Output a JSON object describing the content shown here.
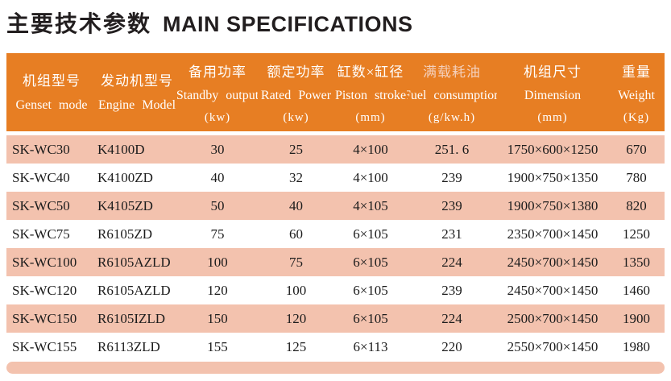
{
  "title": {
    "zh": "主要技术参数",
    "en": "MAIN SPECIFICATIONS"
  },
  "colors": {
    "header_bg": "#e77e23",
    "header_text": "#ffffff",
    "row_alt_bg": "#f3c2ae",
    "body_text": "#1c1c1c",
    "fuel_zh_tint": "#f4d0bc"
  },
  "table": {
    "columns": [
      {
        "zh": "机组型号",
        "en": "Genset mode",
        "unit": ""
      },
      {
        "zh": "发动机型号",
        "en": "Engine Model",
        "unit": ""
      },
      {
        "zh": "备用功率",
        "en": "Standby output",
        "unit": "(kw)"
      },
      {
        "zh": "额定功率",
        "en": "Rated Power",
        "unit": "(kw)"
      },
      {
        "zh": "缸数×缸径",
        "en": "Piston stroke",
        "unit": "(mm)"
      },
      {
        "zh": "满载耗油",
        "en": "Fuel consumption",
        "unit": "(g/kw.h)"
      },
      {
        "zh": "机组尺寸",
        "en": "Dimension",
        "unit": "(mm)"
      },
      {
        "zh": "重量",
        "en": "Weight",
        "unit": "(Kg)"
      }
    ],
    "rows": [
      {
        "cells": [
          "SK-WC30",
          "K4100D",
          "30",
          "25",
          "4×100",
          "251. 6",
          "1750×600×1250",
          "670"
        ]
      },
      {
        "cells": [
          "SK-WC40",
          "K4100ZD",
          "40",
          "32",
          "4×100",
          "239",
          "1900×750×1350",
          "780"
        ]
      },
      {
        "cells": [
          "SK-WC50",
          "K4105ZD",
          "50",
          "40",
          "4×105",
          "239",
          "1900×750×1380",
          "820"
        ]
      },
      {
        "cells": [
          "SK-WC75",
          "R6105ZD",
          "75",
          "60",
          "6×105",
          "231",
          "2350×700×1450",
          "1250"
        ]
      },
      {
        "cells": [
          "SK-WC100",
          "R6105AZLD",
          "100",
          "75",
          "6×105",
          "224",
          "2450×700×1450",
          "1350"
        ]
      },
      {
        "cells": [
          "SK-WC120",
          "R6105AZLD",
          "120",
          "100",
          "6×105",
          "239",
          "2450×700×1450",
          "1460"
        ]
      },
      {
        "cells": [
          "SK-WC150",
          "R6105IZLD",
          "150",
          "120",
          "6×105",
          "224",
          "2500×700×1450",
          "1900"
        ]
      },
      {
        "cells": [
          "SK-WC155",
          "R6113ZLD",
          "155",
          "125",
          "6×113",
          "220",
          "2550×700×1450",
          "1980"
        ]
      }
    ]
  }
}
